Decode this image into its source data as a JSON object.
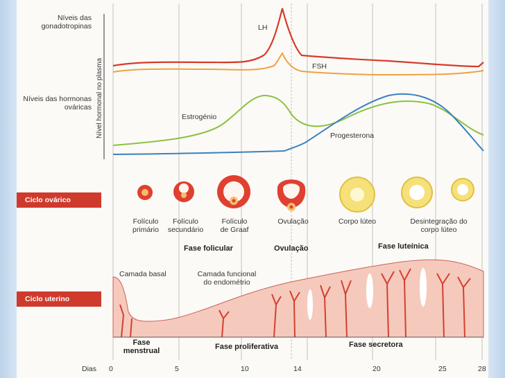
{
  "left_labels": {
    "gonadotropins": "Níveis das gonadotropinas",
    "ovarian_hormones": "Níveis das hormonas ováricas",
    "ovarian_cycle": "Ciclo ovárico",
    "uterine_cycle": "Ciclo uterino",
    "days": "Dias"
  },
  "y_axis_label": "Nível hormonal no plasma",
  "curve_labels": {
    "lh": "LH",
    "fsh": "FSH",
    "estrogen": "Estrogénio",
    "progesterone": "Progesterona"
  },
  "follicle_labels": {
    "primary": "Folículo primário",
    "secondary": "Folículo secundário",
    "graaf": "Folículo de Graaf",
    "ovulation": "Ovulação",
    "corpus_luteum": "Corpo lúteo",
    "disintegration": "Desintegração do corpo lúteo"
  },
  "ovarian_phases": {
    "follicular": "Fase folicular",
    "ovulation": "Ovulação",
    "luteal": "Fase luteínica"
  },
  "uterine_labels": {
    "basal_layer": "Camada basal",
    "functional_layer": "Camada funcional do endométrio"
  },
  "uterine_phases": {
    "menstrual": "Fase menstrual",
    "proliferative": "Fase proliferativa",
    "secretory": "Fase secretora"
  },
  "day_ticks": [
    "0",
    "5",
    "10",
    "14",
    "20",
    "25",
    "28"
  ],
  "colors": {
    "lh": "#d63a2a",
    "fsh": "#f0a040",
    "estrogen": "#8cc040",
    "progesterone": "#3a80c0",
    "badge": "#cf3a2c",
    "endometrium": "#f6c9bd"
  }
}
